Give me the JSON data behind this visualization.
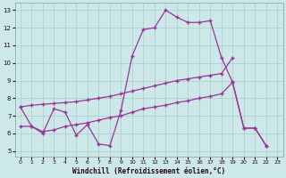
{
  "xlabel": "Windchill (Refroidissement éolien,°C)",
  "background_color": "#cce8e8",
  "grid_color": "#aacccc",
  "line_color": "#993399",
  "xlim_min": -0.5,
  "xlim_max": 23.5,
  "ylim_min": 4.7,
  "ylim_max": 13.4,
  "yticks": [
    5,
    6,
    7,
    8,
    9,
    10,
    11,
    12,
    13
  ],
  "xticks": [
    0,
    1,
    2,
    3,
    4,
    5,
    6,
    7,
    8,
    9,
    10,
    11,
    12,
    13,
    14,
    15,
    16,
    17,
    18,
    19,
    20,
    21,
    22,
    23
  ],
  "line1_x": [
    0,
    1,
    2,
    3,
    4,
    5,
    6,
    7,
    8,
    9,
    10,
    11,
    12,
    13,
    14,
    15,
    16,
    17,
    18,
    19,
    20,
    21,
    22
  ],
  "line1_y": [
    7.5,
    6.4,
    6.0,
    7.4,
    7.2,
    5.9,
    6.5,
    5.4,
    5.3,
    7.3,
    10.4,
    11.9,
    12.0,
    13.0,
    12.6,
    12.3,
    12.3,
    12.4,
    10.3,
    8.9,
    6.3,
    6.3,
    5.3
  ],
  "line2_x": [
    0,
    1,
    2,
    3,
    4,
    5,
    6,
    7,
    8,
    9,
    10,
    11,
    12,
    13,
    14,
    15,
    16,
    17,
    18,
    19
  ],
  "line2_y": [
    7.5,
    7.6,
    7.65,
    7.7,
    7.75,
    7.8,
    7.9,
    8.0,
    8.1,
    8.25,
    8.4,
    8.55,
    8.7,
    8.85,
    9.0,
    9.1,
    9.2,
    9.3,
    9.4,
    10.3
  ],
  "line3_x": [
    0,
    1,
    2,
    3,
    4,
    5,
    6,
    7,
    8,
    9,
    10,
    11,
    12,
    13,
    14,
    15,
    16,
    17,
    18,
    19,
    20,
    21,
    22
  ],
  "line3_y": [
    6.4,
    6.4,
    6.1,
    6.2,
    6.4,
    6.5,
    6.6,
    6.75,
    6.9,
    7.0,
    7.2,
    7.4,
    7.5,
    7.6,
    7.75,
    7.85,
    8.0,
    8.1,
    8.25,
    8.9,
    6.3,
    6.3,
    5.3
  ]
}
